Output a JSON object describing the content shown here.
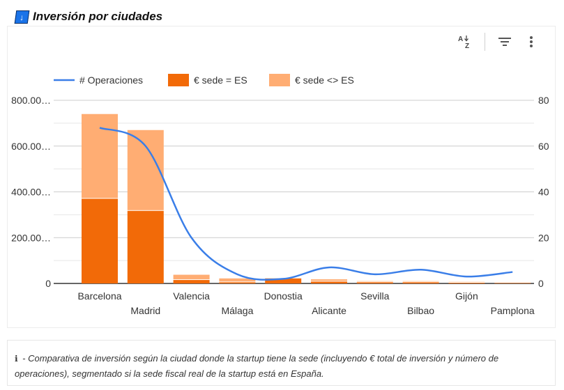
{
  "header": {
    "title": "Inversión por ciudades",
    "icon": "download-icon"
  },
  "toolbar": {
    "sort_icon": "sort-az-icon",
    "filter_icon": "filter-icon",
    "menu_icon": "more-vert-icon"
  },
  "colors": {
    "line": "#3a7ee8",
    "bar_es": "#f26a08",
    "bar_non_es": "#ffad73",
    "grid": "#cccccc",
    "header_icon": "#1a73e8"
  },
  "chart_data": {
    "type": "bar",
    "stacked": true,
    "categories": [
      "Barcelona",
      "Madrid",
      "Valencia",
      "Málaga",
      "Donostia",
      "Alicante",
      "Sevilla",
      "Bilbao",
      "Gijón",
      "Pamplona"
    ],
    "series": [
      {
        "name": "€ sede = ES",
        "type": "bar",
        "axis": "left",
        "values": [
          370,
          317,
          15,
          5,
          22,
          8,
          5,
          5,
          3,
          2
        ]
      },
      {
        "name": "€ sede <> ES",
        "type": "bar",
        "axis": "left",
        "values": [
          370,
          353,
          23,
          17,
          3,
          10,
          5,
          5,
          4,
          3
        ]
      },
      {
        "name": "# Operaciones",
        "type": "line",
        "axis": "right",
        "smooth": true,
        "values": [
          68,
          60,
          20,
          4,
          2,
          7,
          4,
          6,
          3,
          5
        ]
      }
    ],
    "y_left": {
      "ylim": [
        0,
        800
      ],
      "ticks": [
        "0",
        "200.00…",
        "400.00…",
        "600.00…",
        "800.00…"
      ]
    },
    "y_right": {
      "ylim": [
        0,
        80
      ],
      "ticks": [
        "0",
        "20",
        "40",
        "60",
        "80"
      ]
    },
    "legend_position": "top-left",
    "grid": true
  },
  "note": {
    "icon": "ℹ",
    "text": " - Comparativa de inversión según la ciudad donde la startup tiene la sede (incluyendo € total de inversión y número de operaciones), segmentado si la sede fiscal real de la startup está en España."
  }
}
